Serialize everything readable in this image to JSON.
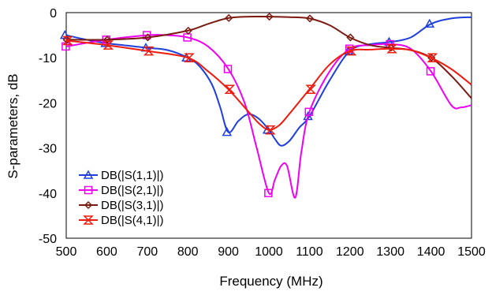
{
  "chart_data": {
    "type": "line",
    "title": "",
    "xlabel": "Frequency (MHz)",
    "ylabel": "S-parameters, dB",
    "xlim": [
      500,
      1500
    ],
    "ylim": [
      -50,
      0
    ],
    "xticks": [
      "500",
      "600",
      "700",
      "800",
      "900",
      "1000",
      "1100",
      "1200",
      "1300",
      "1400",
      "1500"
    ],
    "yticks": [
      "0",
      "-10",
      "-20",
      "-30",
      "-40",
      "-50"
    ],
    "grid": "none",
    "legend": "bottom-left",
    "series": [
      {
        "name": "DB(|S(1,1)|)",
        "color": "#1f3fdc",
        "marker": "triangle-up",
        "x": [
          500,
          550,
          600,
          650,
          700,
          750,
          800,
          830,
          860,
          880,
          900,
          925,
          950,
          975,
          1000,
          1015,
          1030,
          1050,
          1075,
          1100,
          1150,
          1200,
          1250,
          1300,
          1350,
          1400,
          1450,
          1500
        ],
        "y": [
          -5,
          -6,
          -6.8,
          -7.3,
          -7.8,
          -8.3,
          -10,
          -12,
          -16,
          -21,
          -26.5,
          -24,
          -22.5,
          -23.5,
          -26,
          -28,
          -29.5,
          -28.5,
          -25.5,
          -23,
          -15,
          -8.5,
          -7,
          -6.5,
          -5.5,
          -2.5,
          -1.3,
          -1
        ]
      },
      {
        "name": "DB(|S(2,1)|)",
        "color": "#f000f0",
        "marker": "square",
        "x": [
          500,
          600,
          700,
          750,
          800,
          850,
          900,
          940,
          970,
          1000,
          1015,
          1030,
          1045,
          1065,
          1080,
          1100,
          1150,
          1200,
          1250,
          1300,
          1350,
          1400,
          1450,
          1475,
          1500
        ],
        "y": [
          -7.5,
          -6,
          -5,
          -5,
          -5.5,
          -7.5,
          -12.5,
          -20,
          -30,
          -40,
          -37,
          -34,
          -34,
          -41,
          -31,
          -22,
          -13,
          -8,
          -7.2,
          -7,
          -8,
          -13,
          -20.5,
          -21,
          -20.5
        ]
      },
      {
        "name": "DB(|S(3,1)|)",
        "color": "#7b1a10",
        "marker": "diamond",
        "x": [
          500,
          600,
          700,
          800,
          850,
          900,
          950,
          1000,
          1050,
          1100,
          1150,
          1200,
          1250,
          1300,
          1350,
          1400,
          1450,
          1500
        ],
        "y": [
          -6,
          -6,
          -5.5,
          -4,
          -2.5,
          -1.2,
          -0.9,
          -0.9,
          -1,
          -1.3,
          -2.8,
          -5.5,
          -7.2,
          -7.8,
          -8.3,
          -10,
          -14,
          -19
        ]
      },
      {
        "name": "DB(|S(4,1)|)",
        "color": "#ee1c0f",
        "marker": "hourglass",
        "x": [
          500,
          600,
          700,
          800,
          850,
          900,
          950,
          975,
          1000,
          1025,
          1050,
          1100,
          1150,
          1200,
          1250,
          1300,
          1350,
          1400,
          1450,
          1500
        ],
        "y": [
          -6.2,
          -7.2,
          -8.5,
          -10,
          -13,
          -17,
          -22,
          -24.5,
          -26,
          -25,
          -22.5,
          -17,
          -11.5,
          -8.5,
          -8.2,
          -8,
          -8.3,
          -10,
          -12.5,
          -16
        ]
      }
    ]
  }
}
